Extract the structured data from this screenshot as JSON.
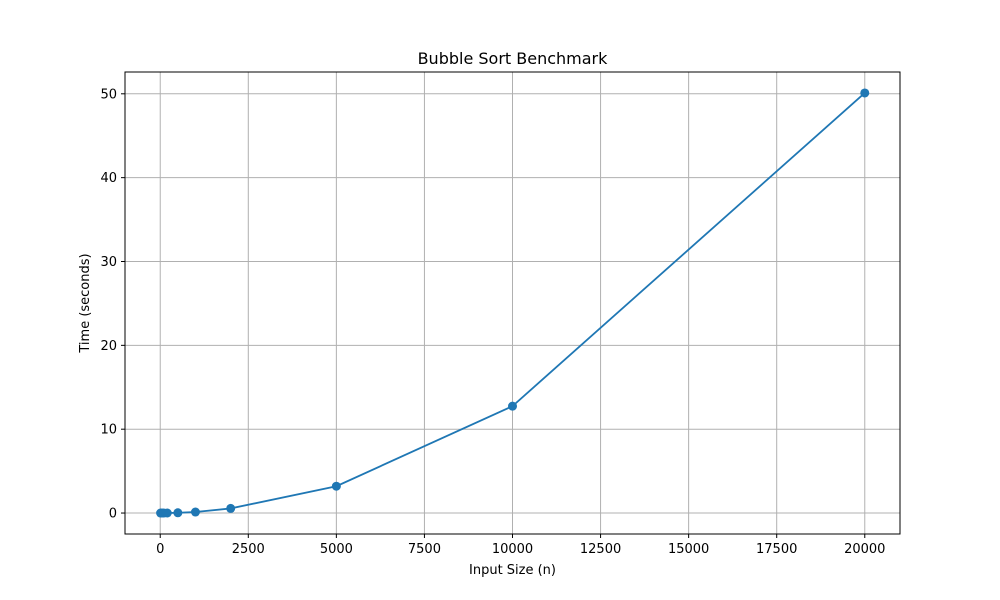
{
  "chart_data": {
    "type": "line",
    "title": "Bubble Sort Benchmark",
    "xlabel": "Input Size (n)",
    "ylabel": "Time (seconds)",
    "xlim": [
      -1000,
      21000
    ],
    "ylim": [
      -2.5,
      52.6
    ],
    "x_ticks": [
      0,
      2500,
      5000,
      7500,
      10000,
      12500,
      15000,
      17500,
      20000
    ],
    "y_ticks": [
      0,
      10,
      20,
      30,
      40,
      50
    ],
    "grid": true,
    "series": [
      {
        "color": "#1f77b4",
        "marker": "circle",
        "x": [
          10,
          50,
          100,
          200,
          500,
          1000,
          2000,
          5000,
          10000,
          20000
        ],
        "y": [
          0.0,
          0.0,
          0.001,
          0.005,
          0.03,
          0.12,
          0.55,
          3.2,
          12.75,
          50.1
        ]
      }
    ]
  }
}
